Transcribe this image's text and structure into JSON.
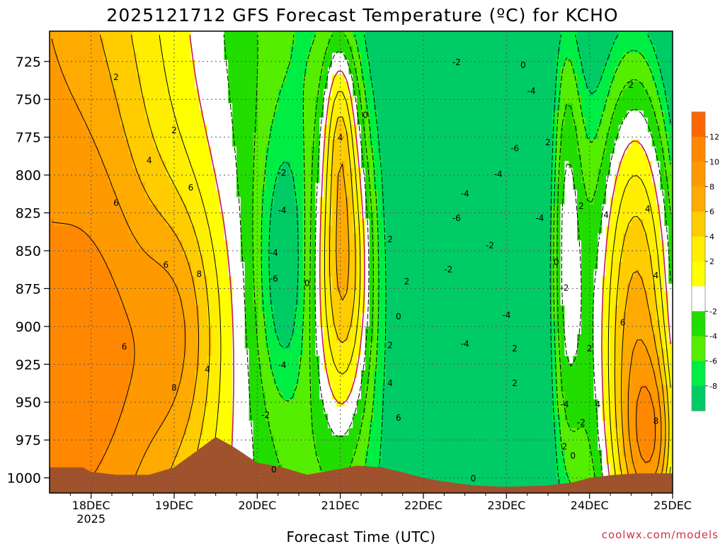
{
  "chart_data": {
    "type": "heatmap",
    "title": "2025121712 GFS Forecast Temperature (ºC) for KCHO",
    "xlabel": "Forecast Time (UTC)",
    "ylabel": "",
    "x_ticks": [
      {
        "label": "18DEC",
        "sub": "2025",
        "day": 18
      },
      {
        "label": "19DEC",
        "sub": "",
        "day": 19
      },
      {
        "label": "20DEC",
        "sub": "",
        "day": 20
      },
      {
        "label": "21DEC",
        "sub": "",
        "day": 21
      },
      {
        "label": "22DEC",
        "sub": "",
        "day": 22
      },
      {
        "label": "23DEC",
        "sub": "",
        "day": 23
      },
      {
        "label": "24DEC",
        "sub": "",
        "day": 24
      },
      {
        "label": "25DEC",
        "sub": "",
        "day": 25
      }
    ],
    "xlim": [
      17.5,
      25.0
    ],
    "y_ticks": [
      725,
      750,
      775,
      800,
      825,
      850,
      875,
      900,
      925,
      950,
      975,
      1000
    ],
    "ylim": [
      1010,
      705
    ],
    "y_scale": "pressure (hPa), inverted",
    "grid": true,
    "legend": {
      "placement": "right",
      "ticks": [
        12,
        10,
        8,
        6,
        4,
        2,
        -2,
        -4,
        -6,
        -8
      ],
      "bins": [
        {
          "lo": 12,
          "hi": 14,
          "color": "#ff6600"
        },
        {
          "lo": 10,
          "hi": 12,
          "color": "#ff8800"
        },
        {
          "lo": 8,
          "hi": 10,
          "color": "#ff9900"
        },
        {
          "lo": 6,
          "hi": 8,
          "color": "#ffaa00"
        },
        {
          "lo": 4,
          "hi": 6,
          "color": "#ffcc00"
        },
        {
          "lo": 2,
          "hi": 4,
          "color": "#ffee00"
        },
        {
          "lo": 0,
          "hi": 2,
          "color": "#ffff00"
        },
        {
          "lo": -2,
          "hi": 0,
          "color": "#ffffff"
        },
        {
          "lo": -4,
          "hi": -2,
          "color": "#22dd00"
        },
        {
          "lo": -6,
          "hi": -4,
          "color": "#55ee00"
        },
        {
          "lo": -8,
          "hi": -6,
          "color": "#00ee44"
        },
        {
          "lo": -10,
          "hi": -8,
          "color": "#00cc66"
        }
      ]
    },
    "terrain_color": "#a0522d",
    "zero_contour_color": "#c2186b",
    "contour_labels": [
      {
        "t": 18.3,
        "p": 735,
        "v": "2"
      },
      {
        "t": 19.0,
        "p": 770,
        "v": "2"
      },
      {
        "t": 18.7,
        "p": 790,
        "v": "4"
      },
      {
        "t": 18.3,
        "p": 818,
        "v": "6"
      },
      {
        "t": 18.9,
        "p": 859,
        "v": "6"
      },
      {
        "t": 18.4,
        "p": 913,
        "v": "6"
      },
      {
        "t": 19.3,
        "p": 865,
        "v": "8"
      },
      {
        "t": 19.0,
        "p": 940,
        "v": "8"
      },
      {
        "t": 19.2,
        "p": 808,
        "v": "6"
      },
      {
        "t": 19.4,
        "p": 928,
        "v": "4"
      },
      {
        "t": 20.3,
        "p": 798,
        "v": "-2"
      },
      {
        "t": 20.3,
        "p": 823,
        "v": "-4"
      },
      {
        "t": 20.2,
        "p": 851,
        "v": "-4"
      },
      {
        "t": 20.2,
        "p": 868,
        "v": "-6"
      },
      {
        "t": 20.6,
        "p": 871,
        "v": "0"
      },
      {
        "t": 20.3,
        "p": 925,
        "v": "-4"
      },
      {
        "t": 20.1,
        "p": 958,
        "v": "-2"
      },
      {
        "t": 20.2,
        "p": 994,
        "v": "0"
      },
      {
        "t": 21.0,
        "p": 775,
        "v": "4"
      },
      {
        "t": 21.3,
        "p": 760,
        "v": "0"
      },
      {
        "t": 21.6,
        "p": 842,
        "v": "2"
      },
      {
        "t": 21.8,
        "p": 870,
        "v": "2"
      },
      {
        "t": 21.7,
        "p": 893,
        "v": "0"
      },
      {
        "t": 21.6,
        "p": 912,
        "v": "2"
      },
      {
        "t": 21.6,
        "p": 937,
        "v": "4"
      },
      {
        "t": 21.7,
        "p": 960,
        "v": "6"
      },
      {
        "t": 22.4,
        "p": 725,
        "v": "-2"
      },
      {
        "t": 22.5,
        "p": 812,
        "v": "-4"
      },
      {
        "t": 22.4,
        "p": 828,
        "v": "-6"
      },
      {
        "t": 22.3,
        "p": 862,
        "v": "-2"
      },
      {
        "t": 22.8,
        "p": 846,
        "v": "-2"
      },
      {
        "t": 22.5,
        "p": 911,
        "v": "-4"
      },
      {
        "t": 23.1,
        "p": 782,
        "v": "-6"
      },
      {
        "t": 22.9,
        "p": 799,
        "v": "-4"
      },
      {
        "t": 23.0,
        "p": 892,
        "v": "-4"
      },
      {
        "t": 23.1,
        "p": 914,
        "v": "2"
      },
      {
        "t": 23.1,
        "p": 937,
        "v": "2"
      },
      {
        "t": 23.3,
        "p": 744,
        "v": "-4"
      },
      {
        "t": 23.5,
        "p": 778,
        "v": "2"
      },
      {
        "t": 23.4,
        "p": 828,
        "v": "-4"
      },
      {
        "t": 23.6,
        "p": 857,
        "v": "0"
      },
      {
        "t": 23.7,
        "p": 874,
        "v": "-2"
      },
      {
        "t": 23.7,
        "p": 951,
        "v": "-4"
      },
      {
        "t": 23.9,
        "p": 963,
        "v": "-2"
      },
      {
        "t": 23.7,
        "p": 979,
        "v": "2"
      },
      {
        "t": 23.8,
        "p": 985,
        "v": "0"
      },
      {
        "t": 24.1,
        "p": 951,
        "v": "4"
      },
      {
        "t": 24.5,
        "p": 740,
        "v": "2"
      },
      {
        "t": 23.9,
        "p": 820,
        "v": "2"
      },
      {
        "t": 24.2,
        "p": 826,
        "v": "4"
      },
      {
        "t": 24.7,
        "p": 822,
        "v": "4"
      },
      {
        "t": 24.0,
        "p": 914,
        "v": "2"
      },
      {
        "t": 24.4,
        "p": 897,
        "v": "6"
      },
      {
        "t": 24.8,
        "p": 866,
        "v": "4"
      },
      {
        "t": 24.8,
        "p": 962,
        "v": "8"
      },
      {
        "t": 22.6,
        "p": 1000,
        "v": "0"
      },
      {
        "t": 23.2,
        "p": 727,
        "v": "0"
      }
    ]
  },
  "footer": {
    "credit": "coolwx.com/models"
  }
}
